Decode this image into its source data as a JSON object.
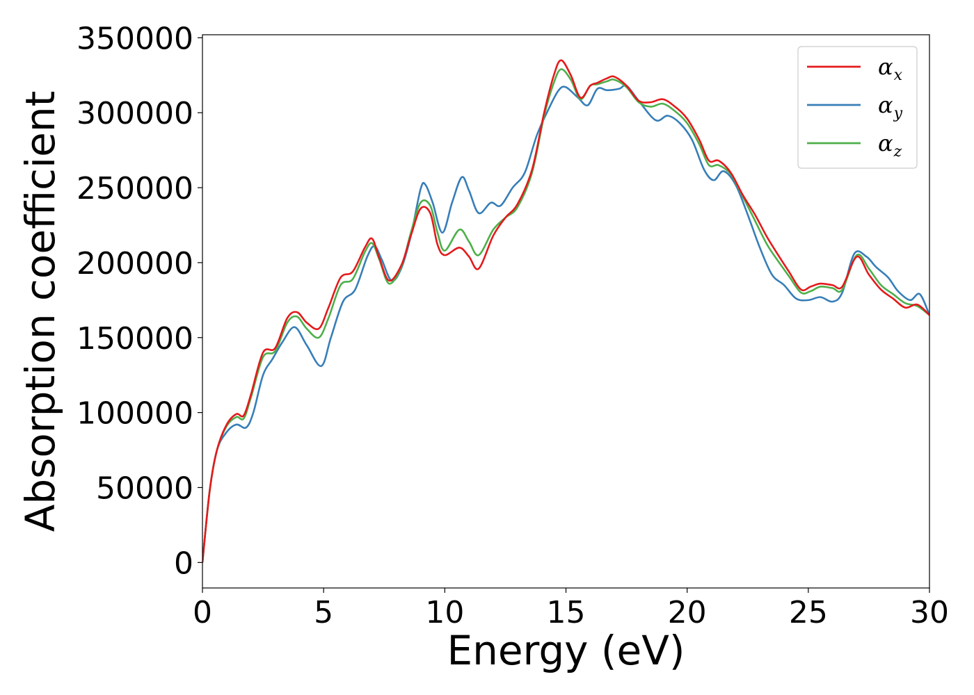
{
  "chart_data": {
    "type": "line",
    "xlabel": "Energy (eV)",
    "ylabel": "Absorption coefficient",
    "xlim": [
      0,
      30
    ],
    "ylim": [
      -17000,
      352000
    ],
    "xticks": [
      "0",
      "5",
      "10",
      "15",
      "20",
      "25",
      "30"
    ],
    "yticks": [
      "0",
      "50000",
      "100000",
      "150000",
      "200000",
      "250000",
      "300000",
      "350000"
    ],
    "legend_position": "top-right",
    "grid": false,
    "series": [
      {
        "name": "αx",
        "base": "α",
        "sub": "x",
        "color": "#e41a1c",
        "x": [
          0,
          0.3,
          0.6,
          1.0,
          1.4,
          1.7,
          2.0,
          2.5,
          3.0,
          3.5,
          3.9,
          4.3,
          4.8,
          5.2,
          5.7,
          6.2,
          6.7,
          7.0,
          7.3,
          7.7,
          8.2,
          8.6,
          9.0,
          9.4,
          9.7,
          10.0,
          10.6,
          11.0,
          11.4,
          12.0,
          12.5,
          13.0,
          13.6,
          14.1,
          14.5,
          14.8,
          15.2,
          15.6,
          16.0,
          16.3,
          16.7,
          17.0,
          17.5,
          18.0,
          18.5,
          19.0,
          19.5,
          20.0,
          20.5,
          20.9,
          21.3,
          21.8,
          22.3,
          22.8,
          23.3,
          23.8,
          24.2,
          24.7,
          25.1,
          25.5,
          26.0,
          26.4,
          27.0,
          27.5,
          28.0,
          28.5,
          29.0,
          29.5,
          30.0
        ],
        "y": [
          0,
          48000,
          75000,
          92000,
          99000,
          98000,
          112000,
          140000,
          143000,
          163000,
          167000,
          160000,
          156000,
          170000,
          190000,
          194000,
          210000,
          216000,
          203000,
          188000,
          198000,
          218000,
          236000,
          233000,
          212000,
          205000,
          210000,
          204000,
          196000,
          218000,
          230000,
          239000,
          262000,
          300000,
          325000,
          335000,
          325000,
          310000,
          318000,
          320000,
          323000,
          324000,
          318000,
          308000,
          307000,
          309000,
          304000,
          296000,
          282000,
          268000,
          268000,
          260000,
          245000,
          232000,
          217000,
          204000,
          194000,
          182000,
          184000,
          186000,
          185000,
          184000,
          204000,
          192000,
          182000,
          176000,
          170000,
          172000,
          165000
        ]
      },
      {
        "name": "αy",
        "base": "α",
        "sub": "y",
        "color": "#377eb8",
        "x": [
          0,
          0.3,
          0.6,
          1.0,
          1.4,
          1.8,
          2.1,
          2.5,
          2.9,
          3.3,
          3.8,
          4.3,
          4.9,
          5.3,
          5.8,
          6.3,
          6.8,
          7.1,
          7.4,
          7.8,
          8.2,
          8.6,
          9.0,
          9.2,
          9.5,
          9.9,
          10.3,
          10.7,
          11.0,
          11.4,
          11.9,
          12.3,
          12.8,
          13.3,
          13.8,
          14.3,
          14.7,
          15.0,
          15.5,
          15.9,
          16.3,
          16.7,
          17.2,
          17.5,
          18.0,
          18.7,
          19.2,
          19.7,
          20.2,
          20.7,
          21.1,
          21.5,
          22.0,
          22.5,
          23.0,
          23.5,
          24.0,
          24.5,
          25.0,
          25.5,
          26.0,
          26.4,
          26.9,
          27.4,
          27.8,
          28.3,
          28.7,
          29.2,
          29.6,
          30.0
        ],
        "y": [
          0,
          48000,
          75000,
          87000,
          92000,
          90000,
          100000,
          125000,
          136000,
          147000,
          157000,
          145000,
          131000,
          150000,
          174000,
          182000,
          204000,
          211000,
          202000,
          188000,
          196000,
          218000,
          249000,
          252000,
          240000,
          220000,
          240000,
          257000,
          248000,
          233000,
          240000,
          238000,
          250000,
          260000,
          285000,
          303000,
          315000,
          317000,
          310000,
          305000,
          316000,
          315000,
          316000,
          318000,
          308000,
          295000,
          298000,
          293000,
          282000,
          262000,
          255000,
          261000,
          252000,
          232000,
          210000,
          192000,
          185000,
          176000,
          175000,
          177000,
          174000,
          180000,
          206000,
          204000,
          197000,
          190000,
          181000,
          175000,
          179000,
          165000
        ]
      },
      {
        "name": "αz",
        "base": "α",
        "sub": "z",
        "color": "#4daf4a",
        "x": [
          0,
          0.3,
          0.6,
          1.0,
          1.4,
          1.7,
          2.0,
          2.5,
          3.0,
          3.5,
          3.9,
          4.3,
          4.8,
          5.2,
          5.7,
          6.2,
          6.7,
          7.0,
          7.3,
          7.7,
          8.2,
          8.6,
          9.0,
          9.4,
          9.7,
          10.0,
          10.6,
          11.0,
          11.4,
          12.0,
          12.5,
          13.0,
          13.6,
          14.1,
          14.5,
          14.8,
          15.2,
          15.6,
          16.0,
          16.3,
          16.7,
          17.0,
          17.5,
          18.0,
          18.5,
          19.0,
          19.5,
          20.0,
          20.5,
          20.9,
          21.3,
          21.8,
          22.3,
          22.8,
          23.3,
          23.8,
          24.2,
          24.7,
          25.1,
          25.5,
          26.0,
          26.4,
          27.0,
          27.5,
          28.0,
          28.5,
          29.0,
          29.5,
          30.0
        ],
        "y": [
          0,
          48000,
          75000,
          91000,
          97000,
          96000,
          110000,
          137000,
          141000,
          160000,
          164000,
          156000,
          150000,
          163000,
          185000,
          189000,
          207000,
          213000,
          202000,
          186000,
          197000,
          220000,
          240000,
          238000,
          220000,
          208000,
          222000,
          214000,
          205000,
          222000,
          230000,
          237000,
          260000,
          298000,
          320000,
          329000,
          322000,
          309000,
          318000,
          319000,
          321000,
          322000,
          317000,
          307000,
          304000,
          306000,
          301000,
          293000,
          279000,
          265000,
          265000,
          259000,
          244000,
          228000,
          212000,
          200000,
          191000,
          180000,
          181000,
          184000,
          183000,
          182000,
          205000,
          196000,
          185000,
          179000,
          173000,
          171000,
          165000
        ]
      }
    ]
  }
}
